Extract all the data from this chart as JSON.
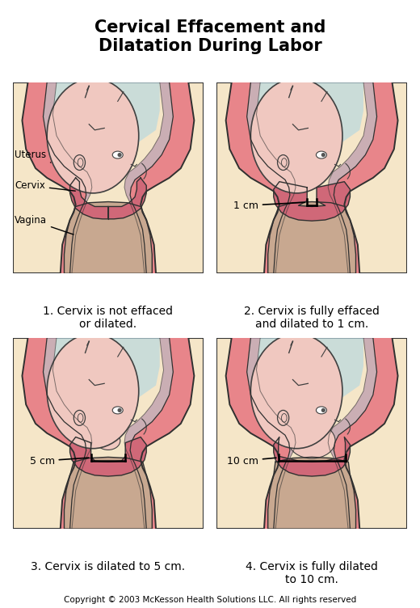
{
  "title_line1": "Cervical Effacement and",
  "title_line2": "Dilatation During Labor",
  "title_fontsize": 15,
  "copyright": "Copyright © 2003 McKesson Health Solutions LLC. All rights reserved",
  "copyright_fontsize": 7.5,
  "bg": "#FFFFFF",
  "panel_bg": "#F5E6C8",
  "captions": [
    "1. Cervix is not effaced\nor dilated.",
    "2. Cervix is fully effaced\nand dilated to 1 cm.",
    "3. Cervix is dilated to 5 cm.",
    "4. Cervix is fully dilated\nto 10 cm."
  ],
  "caption_fontsize": 10,
  "colors": {
    "outer_wall": "#E8858A",
    "inner_lining": "#C0A0B0",
    "amniotic": "#B8D8E0",
    "baby_body": "#F0C8C0",
    "baby_outline": "#404040",
    "cervix_closed": "#D06878",
    "cervix_open": "#C87080",
    "vagina": "#C8A890",
    "outline": "#303030",
    "skin_outer": "#E8858A",
    "label_line": "#000000"
  }
}
